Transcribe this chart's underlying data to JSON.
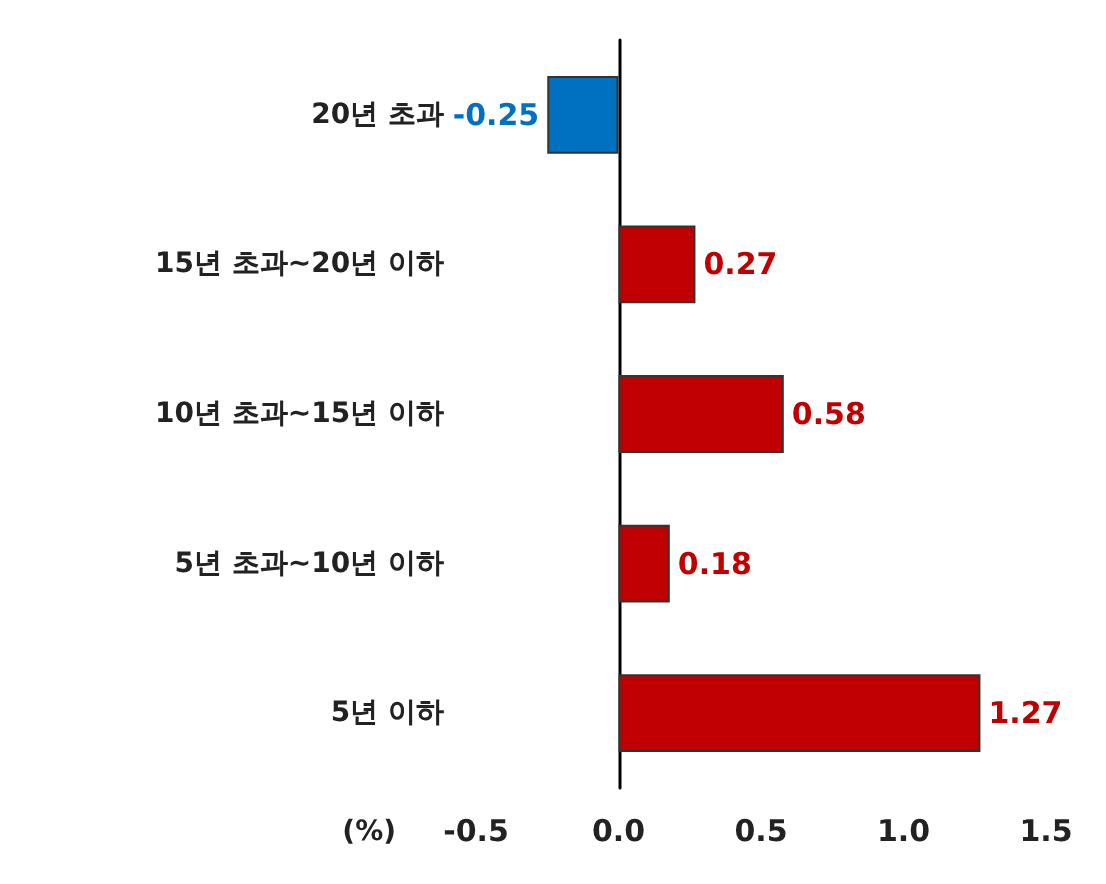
{
  "chart_data": {
    "type": "bar",
    "orientation": "horizontal",
    "xlabel": "(%)",
    "categories": [
      "20년 초과",
      "15년 초과~20년 이하",
      "10년 초과~15년 이하",
      "5년 초과~10년 이하",
      "5년 이하"
    ],
    "values": [
      -0.25,
      0.27,
      0.58,
      0.18,
      1.27
    ],
    "colors": [
      "#0070c0",
      "#c00000",
      "#c00000",
      "#c00000",
      "#c00000"
    ],
    "xlim": [
      -0.5,
      1.5
    ],
    "xticks": [
      -0.5,
      {
        "value": 0,
        "label": "0.0"
      },
      0.5,
      {
        "value": 1,
        "label": "1.0"
      },
      1.5
    ],
    "data_labels": true
  }
}
